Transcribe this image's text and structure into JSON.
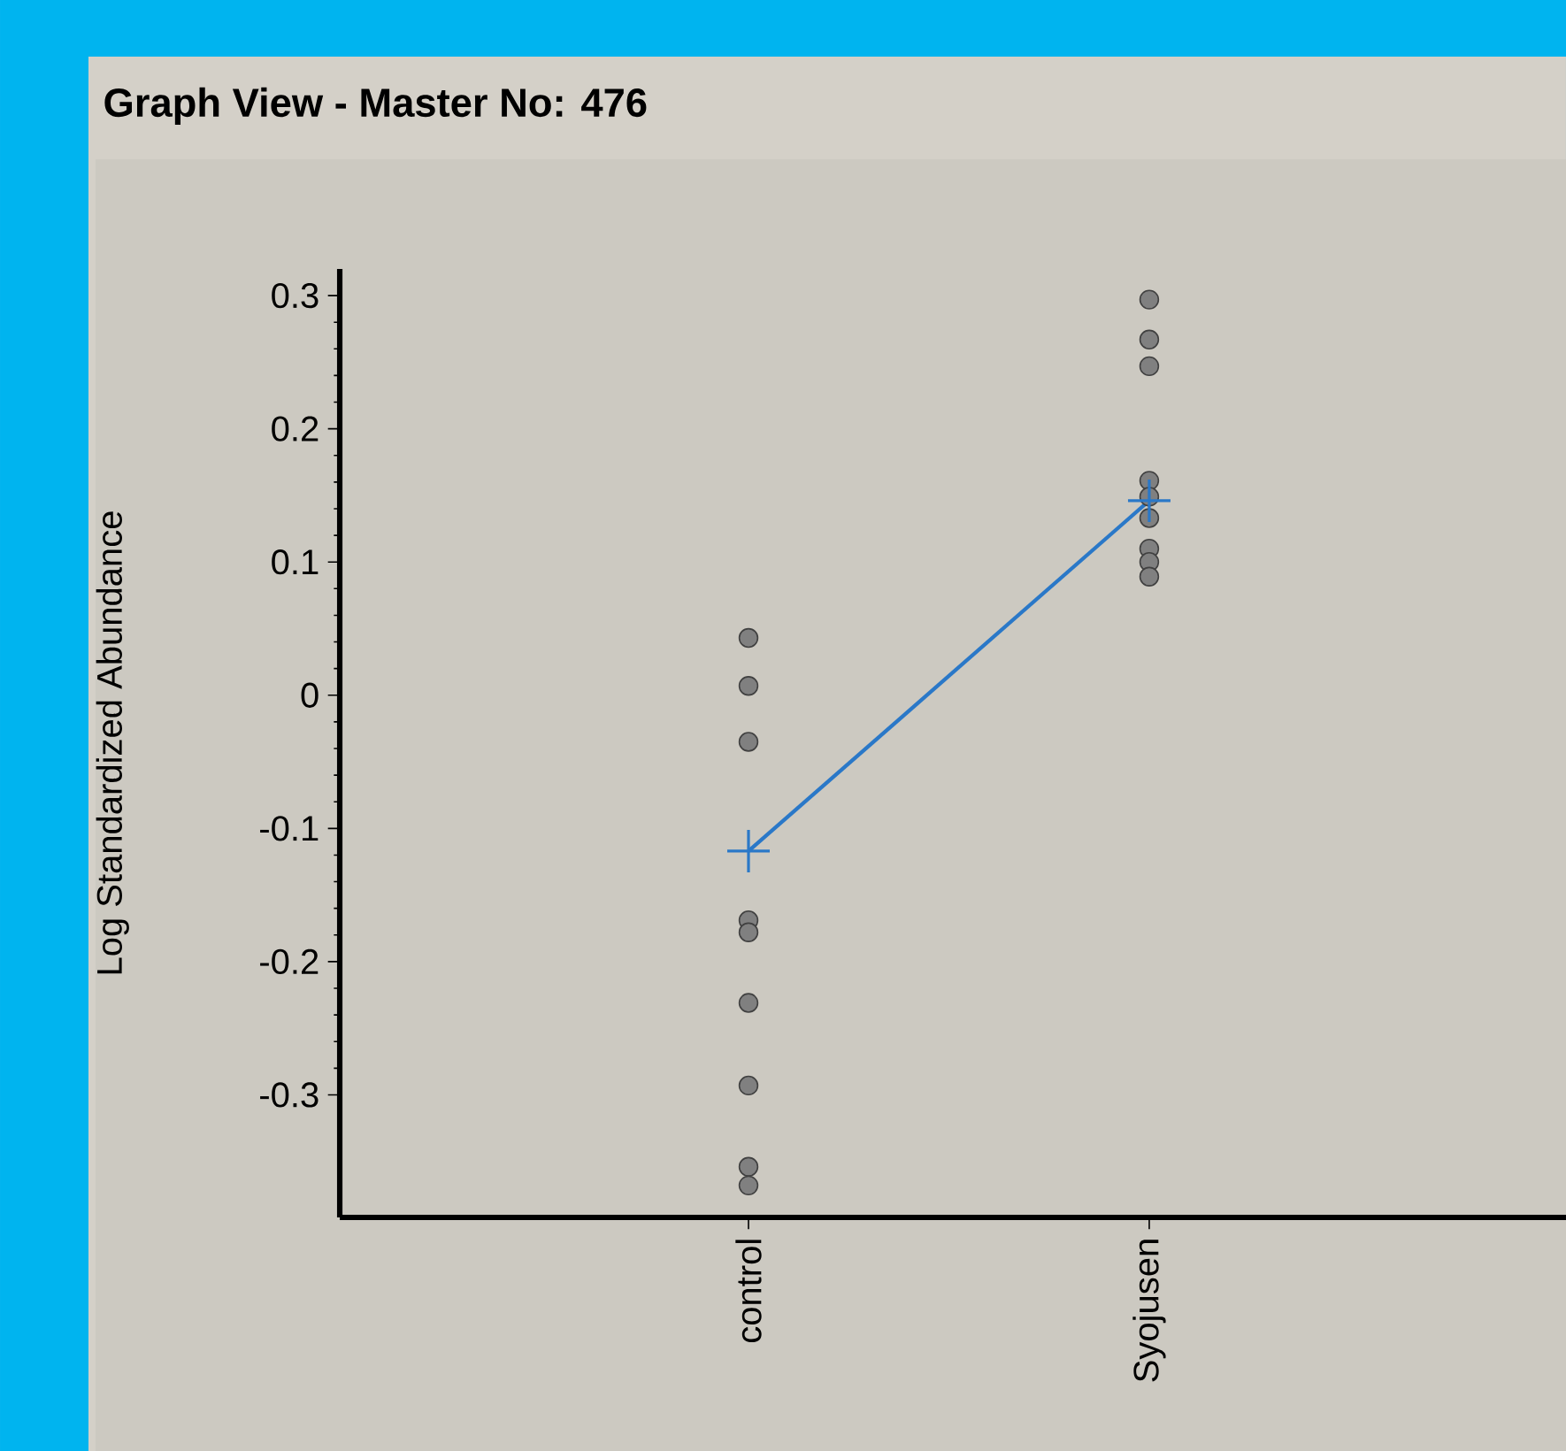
{
  "chart_data": {
    "type": "scatter",
    "title": "Graph View - Master No: 476",
    "ylabel": "Log Standardized Abundance",
    "categories": [
      "control",
      "Syojusen"
    ],
    "ylim": [
      -0.392,
      0.32
    ],
    "yticks": [
      0.3,
      0.2,
      0.1,
      0,
      -0.1,
      -0.2,
      -0.3
    ],
    "series": [
      {
        "color": "#808080",
        "marker": "circle",
        "x": [
          "control",
          "control",
          "control",
          "control",
          "control",
          "control",
          "control",
          "control",
          "control",
          "Syojusen",
          "Syojusen",
          "Syojusen",
          "Syojusen",
          "Syojusen",
          "Syojusen",
          "Syojusen",
          "Syojusen",
          "Syojusen"
        ],
        "values": [
          0.043,
          0.007,
          -0.035,
          -0.169,
          -0.178,
          -0.231,
          -0.293,
          -0.354,
          -0.368,
          0.297,
          0.267,
          0.247,
          0.161,
          0.149,
          0.133,
          0.11,
          0.1,
          0.089
        ]
      },
      {
        "type": "line",
        "color": "#2a78c8",
        "marker": "cross",
        "x": [
          "control",
          "Syojusen"
        ],
        "values": [
          -0.117,
          0.146
        ]
      }
    ]
  }
}
